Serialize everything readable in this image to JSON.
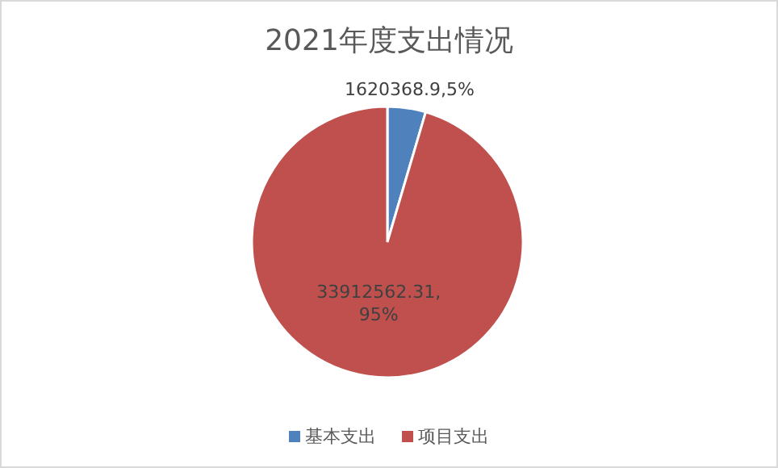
{
  "chart_data": {
    "type": "pie",
    "title": "2021年度支出情况",
    "categories": [
      "基本支出",
      "项目支出"
    ],
    "values": [
      1620368.9,
      33912562.31
    ],
    "colors": [
      "#4f81bd",
      "#c0504d"
    ],
    "value_labels": [
      "1620368.9,5%",
      "33912562.31, 95%"
    ],
    "legend": "bottom"
  }
}
